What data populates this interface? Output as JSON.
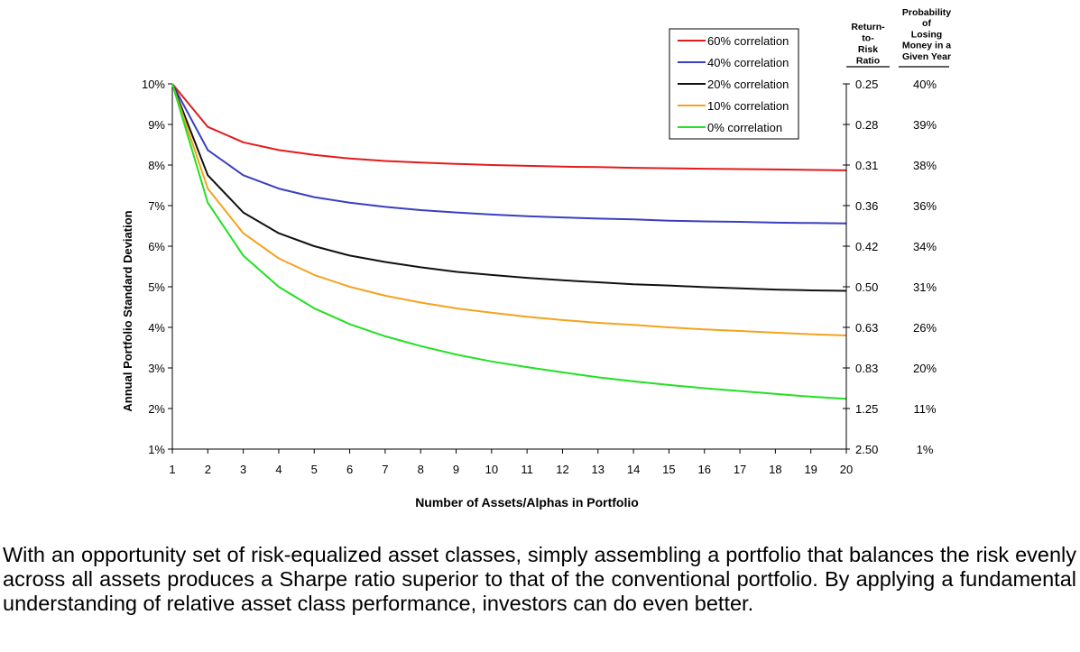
{
  "chart_data": {
    "type": "line",
    "x": [
      1,
      2,
      3,
      4,
      5,
      6,
      7,
      8,
      9,
      10,
      11,
      12,
      13,
      14,
      15,
      16,
      17,
      18,
      19,
      20
    ],
    "xlabel": "Number of Assets/Alphas in Portfolio",
    "ylabel": "Annual Portfolio Standard Deviation",
    "ylim": [
      1,
      10
    ],
    "y_ticks": [
      1,
      2,
      3,
      4,
      5,
      6,
      7,
      8,
      9,
      10
    ],
    "y_tick_labels": [
      "1%",
      "2%",
      "3%",
      "4%",
      "5%",
      "6%",
      "7%",
      "8%",
      "9%",
      "10%"
    ],
    "series": [
      {
        "name": "60% correlation",
        "color": "#e31a1c",
        "values": [
          10,
          8.94,
          8.56,
          8.37,
          8.25,
          8.16,
          8.1,
          8.06,
          8.03,
          8.0,
          7.98,
          7.96,
          7.95,
          7.93,
          7.92,
          7.91,
          7.9,
          7.89,
          7.88,
          7.87
        ]
      },
      {
        "name": "40% correlation",
        "color": "#3a3fbf",
        "values": [
          10,
          8.37,
          7.75,
          7.42,
          7.21,
          7.07,
          6.97,
          6.89,
          6.83,
          6.78,
          6.74,
          6.71,
          6.68,
          6.66,
          6.63,
          6.61,
          6.6,
          6.58,
          6.57,
          6.56
        ]
      },
      {
        "name": "20% correlation",
        "color": "#111111",
        "values": [
          10,
          7.75,
          6.83,
          6.32,
          6.0,
          5.77,
          5.61,
          5.48,
          5.37,
          5.29,
          5.22,
          5.16,
          5.11,
          5.06,
          5.03,
          4.99,
          4.96,
          4.93,
          4.91,
          4.9
        ]
      },
      {
        "name": "10% correlation",
        "color": "#f5a21f",
        "values": [
          10,
          7.42,
          6.32,
          5.7,
          5.29,
          5.0,
          4.78,
          4.61,
          4.47,
          4.36,
          4.26,
          4.18,
          4.11,
          4.06,
          4.0,
          3.95,
          3.91,
          3.87,
          3.83,
          3.8
        ]
      },
      {
        "name": "0% correlation",
        "color": "#22e022",
        "values": [
          10,
          7.07,
          5.77,
          5.0,
          4.47,
          4.08,
          3.78,
          3.54,
          3.33,
          3.16,
          3.02,
          2.89,
          2.77,
          2.67,
          2.58,
          2.5,
          2.43,
          2.36,
          2.29,
          2.24
        ]
      }
    ],
    "right_axis": {
      "header_ratio": [
        "Return-",
        "to-",
        "Risk",
        "Ratio"
      ],
      "header_prob": [
        "Probability",
        "of",
        "Losing",
        "Money in a",
        "Given Year"
      ],
      "ratio_labels": [
        "0.25",
        "0.28",
        "0.31",
        "0.36",
        "0.42",
        "0.50",
        "0.63",
        "0.83",
        "1.25",
        "2.50"
      ],
      "prob_labels": [
        "40%",
        "39%",
        "38%",
        "36%",
        "34%",
        "31%",
        "26%",
        "20%",
        "11%",
        "1%"
      ]
    },
    "legend_position": "top-right",
    "grid": false
  },
  "caption": "With an opportunity set of risk-equalized asset classes, simply assembling a portfolio that balances the risk evenly across all assets produces a Sharpe ratio superior to that of the conventional portfolio.  By applying a fundamental understanding of relative asset class performance, investors can do even better."
}
